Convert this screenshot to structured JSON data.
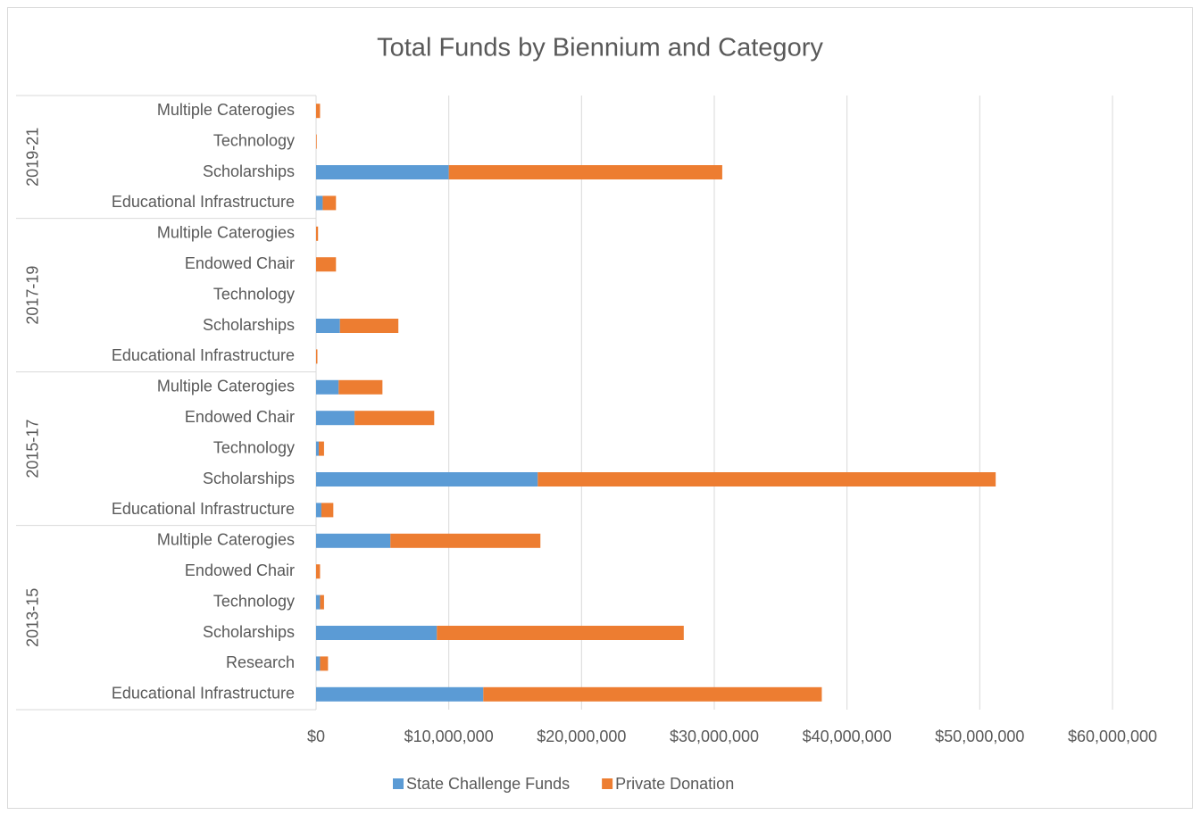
{
  "chart_data": {
    "type": "stacked_barh",
    "title": "Total Funds by Biennium and Category",
    "groups": [
      {
        "label": "2013-15",
        "categories": [
          "Educational Infrastructure",
          "Research",
          "Scholarships",
          "Technology",
          "Endowed Chair",
          "Multiple Caterogies"
        ]
      },
      {
        "label": "2015-17",
        "categories": [
          "Educational Infrastructure",
          "Scholarships",
          "Technology",
          "Endowed Chair",
          "Multiple Caterogies"
        ]
      },
      {
        "label": "2017-19",
        "categories": [
          "Educational Infrastructure",
          "Scholarships",
          "Technology",
          "Endowed Chair",
          "Multiple Caterogies"
        ]
      },
      {
        "label": "2019-21",
        "categories": [
          "Educational Infrastructure",
          "Scholarships",
          "Technology",
          "Multiple Caterogies"
        ]
      }
    ],
    "series": [
      {
        "name": "State Challenge Funds",
        "color": "#5b9bd5",
        "values": [
          [
            12600000,
            300000,
            9100000,
            300000,
            0,
            5600000
          ],
          [
            400000,
            16700000,
            200000,
            2900000,
            1700000
          ],
          [
            0,
            1800000,
            0,
            0,
            0
          ],
          [
            500000,
            10000000,
            0,
            0
          ]
        ]
      },
      {
        "name": "Private Donation",
        "color": "#ed7d31",
        "values": [
          [
            25500000,
            600000,
            18600000,
            300000,
            300000,
            11300000
          ],
          [
            900000,
            34500000,
            400000,
            6000000,
            3300000
          ],
          [
            100000,
            4400000,
            0,
            1500000,
            150000
          ],
          [
            1000000,
            20600000,
            50000,
            300000
          ]
        ]
      }
    ],
    "xlim": [
      0,
      60000000
    ],
    "xticks": [
      {
        "value": 0,
        "label": "$0"
      },
      {
        "value": 10000000,
        "label": "$10,000,000"
      },
      {
        "value": 20000000,
        "label": "$20,000,000"
      },
      {
        "value": 30000000,
        "label": "$30,000,000"
      },
      {
        "value": 40000000,
        "label": "$40,000,000"
      },
      {
        "value": 50000000,
        "label": "$50,000,000"
      },
      {
        "value": 60000000,
        "label": "$60,000,000"
      }
    ],
    "grid": true,
    "legend": "bottom"
  }
}
